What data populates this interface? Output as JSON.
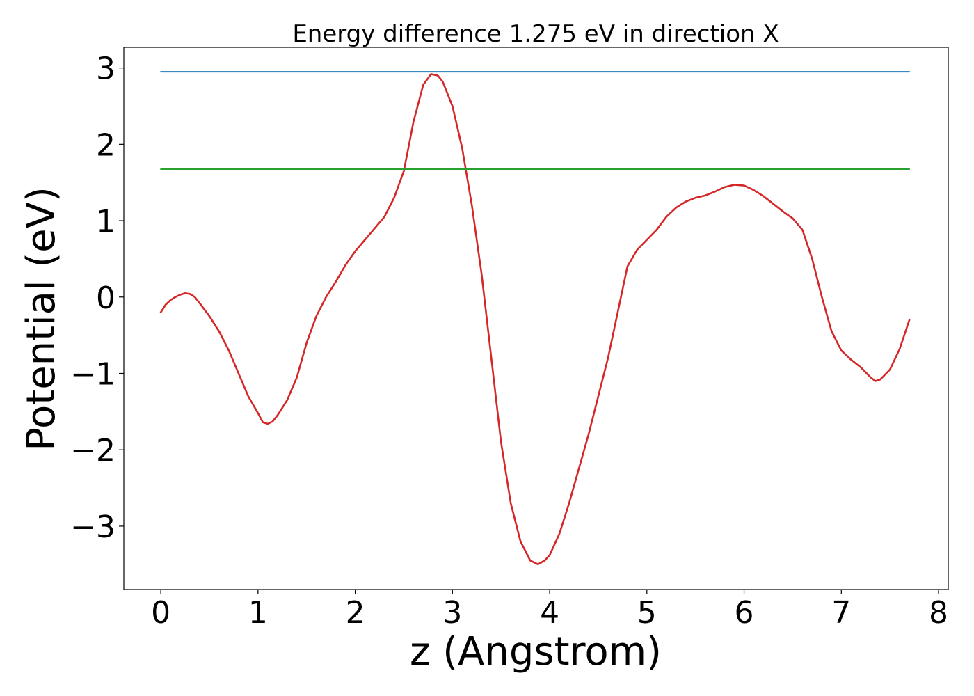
{
  "chart_data": {
    "type": "line",
    "title": "Energy difference 1.275 eV in direction X",
    "xlabel": "z (Angstrom)",
    "ylabel": "Potential (eV)",
    "xlim": [
      -0.38,
      8.1
    ],
    "ylim": [
      -3.83,
      3.27
    ],
    "xticks": [
      0,
      1,
      2,
      3,
      4,
      5,
      6,
      7,
      8
    ],
    "yticks": [
      -3,
      -2,
      -1,
      0,
      1,
      2,
      3
    ],
    "xtick_labels": [
      "0",
      "1",
      "2",
      "3",
      "4",
      "5",
      "6",
      "7",
      "8"
    ],
    "ytick_labels": [
      "−3",
      "−2",
      "−1",
      "0",
      "1",
      "2",
      "3"
    ],
    "grid": false,
    "series": [
      {
        "color": "#d62728",
        "points": [
          [
            0.0,
            -0.2
          ],
          [
            0.05,
            -0.1
          ],
          [
            0.1,
            -0.04
          ],
          [
            0.15,
            0.0
          ],
          [
            0.2,
            0.03
          ],
          [
            0.25,
            0.05
          ],
          [
            0.3,
            0.04
          ],
          [
            0.35,
            0.0
          ],
          [
            0.4,
            -0.08
          ],
          [
            0.5,
            -0.25
          ],
          [
            0.6,
            -0.45
          ],
          [
            0.7,
            -0.7
          ],
          [
            0.8,
            -1.0
          ],
          [
            0.9,
            -1.3
          ],
          [
            1.0,
            -1.52
          ],
          [
            1.05,
            -1.64
          ],
          [
            1.1,
            -1.66
          ],
          [
            1.15,
            -1.63
          ],
          [
            1.2,
            -1.55
          ],
          [
            1.3,
            -1.35
          ],
          [
            1.4,
            -1.05
          ],
          [
            1.5,
            -0.6
          ],
          [
            1.6,
            -0.25
          ],
          [
            1.7,
            0.0
          ],
          [
            1.8,
            0.2
          ],
          [
            1.9,
            0.42
          ],
          [
            2.0,
            0.6
          ],
          [
            2.1,
            0.75
          ],
          [
            2.2,
            0.9
          ],
          [
            2.3,
            1.05
          ],
          [
            2.4,
            1.3
          ],
          [
            2.5,
            1.65
          ],
          [
            2.6,
            2.3
          ],
          [
            2.7,
            2.78
          ],
          [
            2.78,
            2.92
          ],
          [
            2.85,
            2.9
          ],
          [
            2.9,
            2.82
          ],
          [
            3.0,
            2.5
          ],
          [
            3.1,
            1.95
          ],
          [
            3.2,
            1.2
          ],
          [
            3.3,
            0.3
          ],
          [
            3.4,
            -0.8
          ],
          [
            3.5,
            -1.9
          ],
          [
            3.6,
            -2.7
          ],
          [
            3.7,
            -3.2
          ],
          [
            3.8,
            -3.45
          ],
          [
            3.88,
            -3.5
          ],
          [
            3.95,
            -3.45
          ],
          [
            4.0,
            -3.38
          ],
          [
            4.1,
            -3.1
          ],
          [
            4.2,
            -2.7
          ],
          [
            4.3,
            -2.25
          ],
          [
            4.4,
            -1.8
          ],
          [
            4.5,
            -1.3
          ],
          [
            4.6,
            -0.8
          ],
          [
            4.7,
            -0.2
          ],
          [
            4.8,
            0.4
          ],
          [
            4.9,
            0.62
          ],
          [
            5.0,
            0.75
          ],
          [
            5.1,
            0.88
          ],
          [
            5.2,
            1.05
          ],
          [
            5.3,
            1.17
          ],
          [
            5.4,
            1.25
          ],
          [
            5.5,
            1.3
          ],
          [
            5.6,
            1.33
          ],
          [
            5.7,
            1.38
          ],
          [
            5.8,
            1.44
          ],
          [
            5.9,
            1.47
          ],
          [
            6.0,
            1.46
          ],
          [
            6.1,
            1.4
          ],
          [
            6.2,
            1.32
          ],
          [
            6.3,
            1.22
          ],
          [
            6.4,
            1.12
          ],
          [
            6.5,
            1.03
          ],
          [
            6.6,
            0.88
          ],
          [
            6.7,
            0.5
          ],
          [
            6.8,
            0.0
          ],
          [
            6.9,
            -0.45
          ],
          [
            7.0,
            -0.7
          ],
          [
            7.1,
            -0.82
          ],
          [
            7.2,
            -0.92
          ],
          [
            7.3,
            -1.05
          ],
          [
            7.35,
            -1.1
          ],
          [
            7.4,
            -1.08
          ],
          [
            7.5,
            -0.95
          ],
          [
            7.6,
            -0.68
          ],
          [
            7.7,
            -0.3
          ]
        ]
      },
      {
        "color": "#1f77b4",
        "points": [
          [
            0.0,
            2.95
          ],
          [
            7.7,
            2.95
          ]
        ]
      },
      {
        "color": "#2ca02c",
        "points": [
          [
            0.0,
            1.675
          ],
          [
            7.7,
            1.675
          ]
        ]
      }
    ]
  }
}
